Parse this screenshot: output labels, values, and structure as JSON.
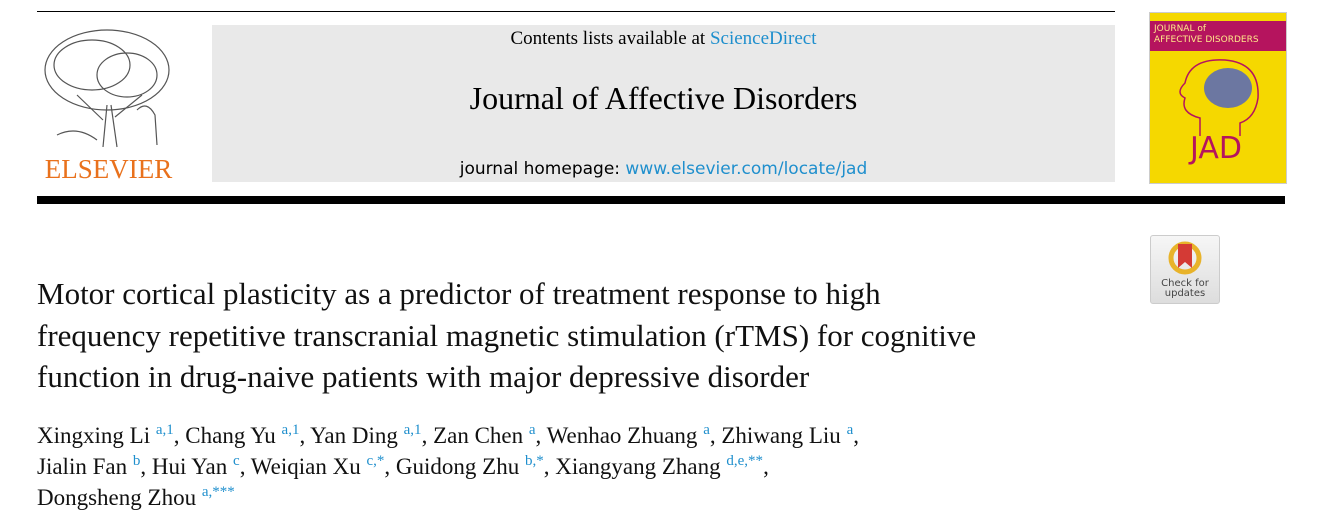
{
  "header": {
    "contents_prefix": "Contents lists available at ",
    "contents_link": "ScienceDirect",
    "journal_title": "Journal of Affective Disorders",
    "homepage_prefix": "journal homepage: ",
    "homepage_link": "www.elsevier.com/locate/jad",
    "publisher_logo": "ELSEVIER",
    "cover_title_line1": "JOURNAL of",
    "cover_title_line2": "AFFECTIVE DISORDERS",
    "cover_abbrev": "JAD",
    "accent_color": "#1f8fcd",
    "publisher_color": "#e9711c"
  },
  "check_updates": {
    "line1": "Check for",
    "line2": "updates"
  },
  "article": {
    "title_lines": [
      "Motor cortical plasticity as a predictor of treatment response to high",
      "frequency repetitive transcranial magnetic stimulation (rTMS) for cognitive",
      "function in drug-naive patients with major depressive disorder"
    ],
    "authors": [
      {
        "name": "Xingxing Li",
        "sup": "a,1"
      },
      {
        "name": "Chang Yu",
        "sup": "a,1"
      },
      {
        "name": "Yan Ding",
        "sup": "a,1"
      },
      {
        "name": "Zan Chen",
        "sup": "a"
      },
      {
        "name": "Wenhao Zhuang",
        "sup": "a"
      },
      {
        "name": "Zhiwang Liu",
        "sup": "a"
      },
      {
        "name": "Jialin Fan",
        "sup": "b"
      },
      {
        "name": "Hui Yan",
        "sup": "c"
      },
      {
        "name": "Weiqian Xu",
        "sup": "c,*"
      },
      {
        "name": "Guidong Zhu",
        "sup": "b,*"
      },
      {
        "name": "Xiangyang Zhang",
        "sup": "d,e,**"
      },
      {
        "name": "Dongsheng Zhou",
        "sup": "a,***"
      }
    ]
  }
}
